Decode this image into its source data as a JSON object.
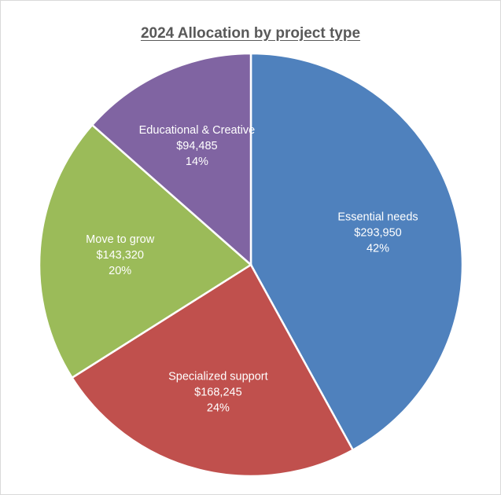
{
  "chart_data": {
    "type": "pie",
    "title": "2024 Allocation by project type",
    "slices": [
      {
        "label": "Essential needs",
        "amount": "$293,950",
        "value": 293950,
        "percent": "42%",
        "color": "#4f81bd"
      },
      {
        "label": "Specialized support",
        "amount": "$168,245",
        "value": 168245,
        "percent": "24%",
        "color": "#c0504d"
      },
      {
        "label": "Move to grow",
        "amount": "$143,320",
        "value": 143320,
        "percent": "20%",
        "color": "#9bbb59"
      },
      {
        "label": "Educational & Creative",
        "amount": "$94,485",
        "value": 94485,
        "percent": "14%",
        "color": "#8064a2"
      }
    ],
    "start_angle": "12 o'clock",
    "direction": "clockwise",
    "legend": "none",
    "data_labels": "inside"
  }
}
